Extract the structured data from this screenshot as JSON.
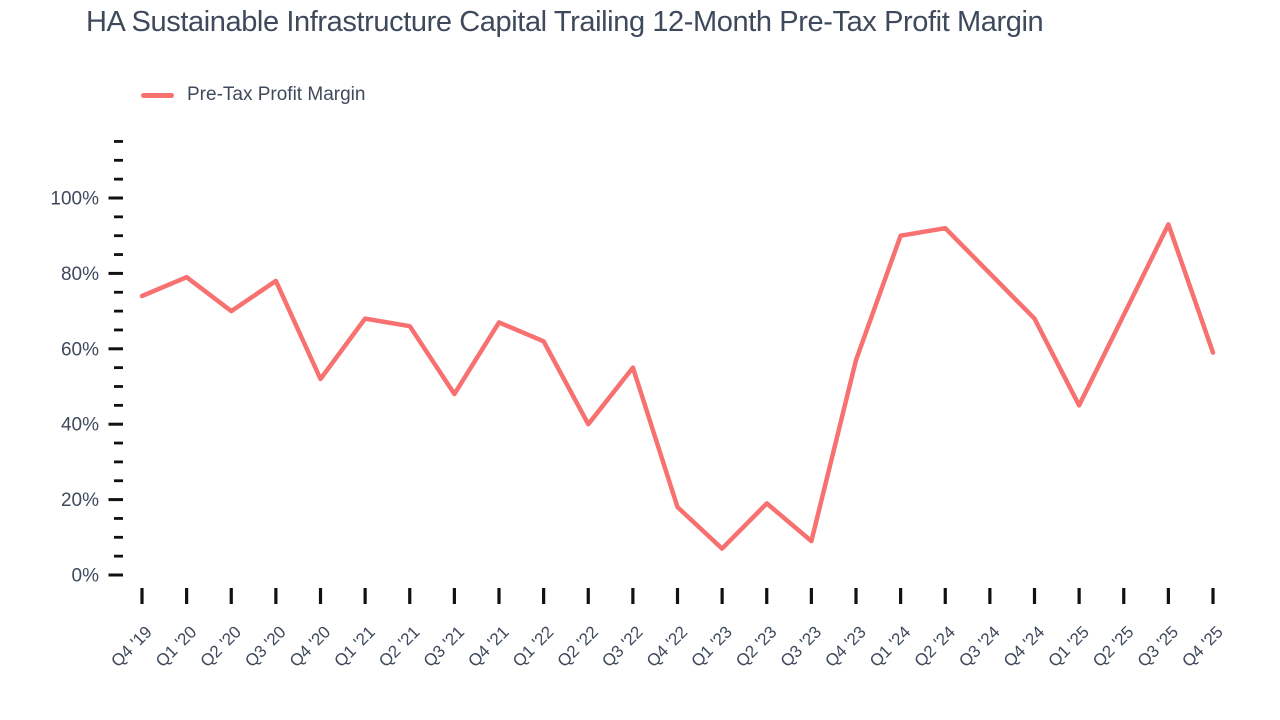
{
  "chart_data": {
    "type": "line",
    "title": "HA Sustainable Infrastructure Capital Trailing 12-Month Pre-Tax Profit Margin",
    "categories": [
      "Q4 '19",
      "Q1 '20",
      "Q2 '20",
      "Q3 '20",
      "Q4 '20",
      "Q1 '21",
      "Q2 '21",
      "Q3 '21",
      "Q4 '21",
      "Q1 '22",
      "Q2 '22",
      "Q3 '22",
      "Q4 '22",
      "Q1 '23",
      "Q2 '23",
      "Q3 '23",
      "Q4 '23",
      "Q1 '24",
      "Q2 '24",
      "Q3 '24",
      "Q4 '24",
      "Q1 '25",
      "Q2 '25",
      "Q3 '25",
      "Q4 '25"
    ],
    "series": [
      {
        "name": "Pre-Tax Profit Margin",
        "color": "#f87171",
        "values": [
          74,
          79,
          70,
          78,
          52,
          68,
          66,
          48,
          67,
          62,
          40,
          55,
          18,
          7,
          19,
          9,
          57,
          90,
          92,
          80,
          68,
          45,
          69,
          93,
          59
        ]
      }
    ],
    "xlabel": "",
    "ylabel": "",
    "y_tick_suffix": "%",
    "y_major_ticks": [
      0,
      20,
      40,
      60,
      80,
      100
    ],
    "y_minor_step": 5,
    "ylim": [
      0,
      115
    ],
    "grid": false,
    "legend_position": "top-left",
    "colors": {
      "line": "#f87171",
      "text": "#3e4a5c",
      "tick": "#111111",
      "background": "#ffffff"
    }
  }
}
